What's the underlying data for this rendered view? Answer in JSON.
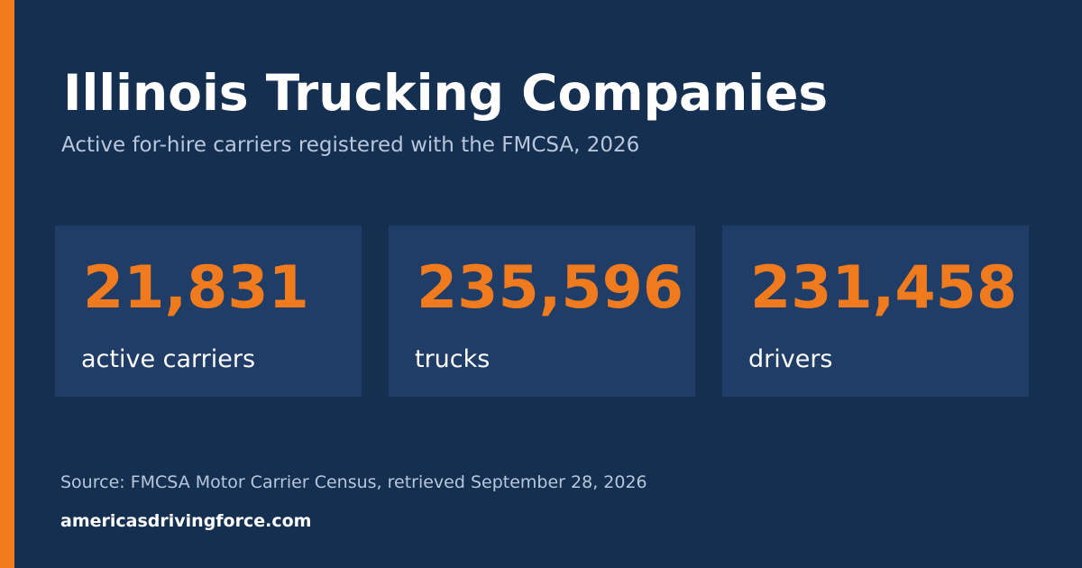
{
  "header": {
    "title": "Illinois Trucking Companies",
    "subtitle": "Active for-hire carriers registered with the FMCSA, 2026"
  },
  "stats": [
    {
      "value": "21,831",
      "label": "active carriers"
    },
    {
      "value": "235,596",
      "label": "trucks"
    },
    {
      "value": "231,458",
      "label": "drivers"
    }
  ],
  "footer": {
    "source": "Source: FMCSA Motor Carrier Census, retrieved September 28, 2026",
    "site": "americasdrivingforce.com"
  },
  "colors": {
    "background": "#142f50",
    "card": "#1f3d66",
    "accent": "#f07b1f",
    "text": "#ffffff",
    "muted_text": "#b9c7dc"
  }
}
